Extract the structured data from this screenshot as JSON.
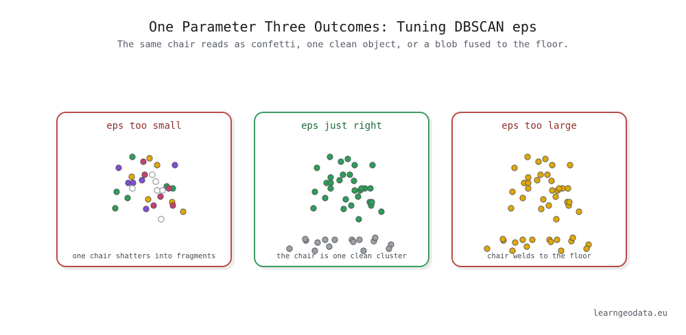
{
  "header": {
    "title": "One Parameter Three Outcomes: Tuning DBSCAN eps",
    "subtitle": "The same chair reads as confetti, one clean object, or a blob fused to the floor."
  },
  "panels": [
    {
      "title": "eps too small",
      "caption": "one chair shatters into fragments",
      "status": "bad",
      "border_color": "#b94a48"
    },
    {
      "title": "eps just right",
      "caption": "the chair is one clean cluster",
      "status": "good",
      "border_color": "#3a9a5c"
    },
    {
      "title": "eps too large",
      "caption": "chair welds to the floor",
      "status": "bad",
      "border_color": "#b94a48"
    }
  ],
  "colors": {
    "green": "#2e9e5b",
    "purple": "#7f4fd6",
    "magenta": "#c4416f",
    "gold": "#e0a80c",
    "noise_outline": "#9aa0a6",
    "floor_gray": "#9aa0a8"
  },
  "footer": {
    "credit": "learngeodata.eu"
  }
}
